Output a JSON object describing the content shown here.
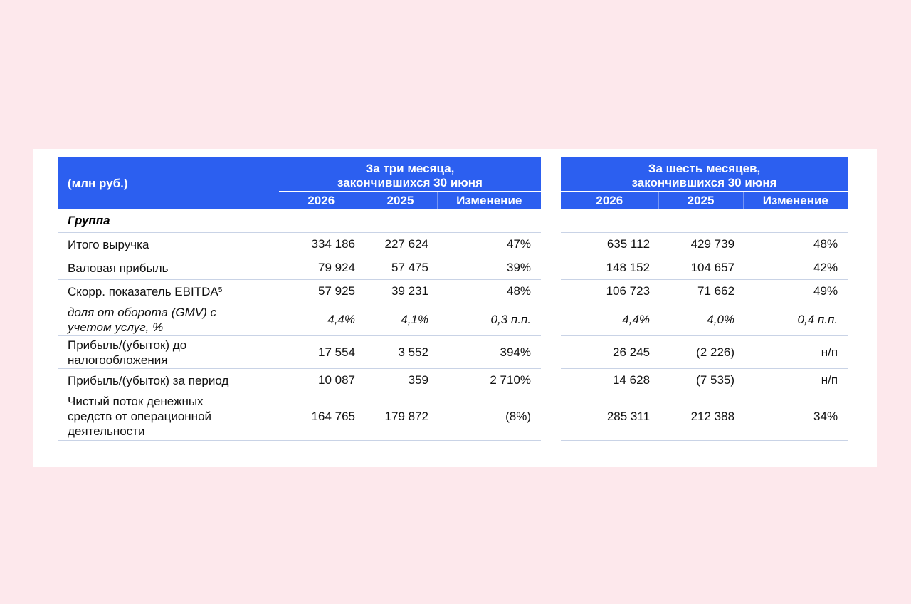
{
  "header": {
    "units": "(млн руб.)",
    "period_three": "За три месяца,\nзакончившихся 30 июня",
    "period_six": "За шесть месяцев,\nзакончившихся 30 июня",
    "col_2026": "2026",
    "col_2025": "2025",
    "col_change": "Изменение"
  },
  "group_label": "Группа",
  "rows": [
    {
      "label": "Итого выручка",
      "sup": "",
      "italic": false,
      "q": [
        "334 186",
        "227 624",
        "47%"
      ],
      "h": [
        "635 112",
        "429 739",
        "48%"
      ]
    },
    {
      "label": "Валовая прибыль",
      "sup": "",
      "italic": false,
      "q": [
        "79 924",
        "57 475",
        "39%"
      ],
      "h": [
        "148 152",
        "104 657",
        "42%"
      ]
    },
    {
      "label": "Скорр. показатель EBITDA",
      "sup": "5",
      "italic": false,
      "q": [
        "57 925",
        "39 231",
        "48%"
      ],
      "h": [
        "106 723",
        "71 662",
        "49%"
      ]
    },
    {
      "label": "доля от оборота (GMV) с учетом услуг, %",
      "sup": "",
      "italic": true,
      "q": [
        "4,4%",
        "4,1%",
        "0,3 п.п."
      ],
      "h": [
        "4,4%",
        "4,0%",
        "0,4 п.п."
      ]
    },
    {
      "label": "Прибыль/(убыток) до налогообложения",
      "sup": "",
      "italic": false,
      "q": [
        "17 554",
        "3 552",
        "394%"
      ],
      "h": [
        "26 245",
        "(2 226)",
        "н/п"
      ]
    },
    {
      "label": "Прибыль/(убыток) за период",
      "sup": "",
      "italic": false,
      "q": [
        "10 087",
        "359",
        "2 710%"
      ],
      "h": [
        "14 628",
        "(7 535)",
        "н/п"
      ]
    },
    {
      "label": "Чистый поток денежных средств от операционной деятельности",
      "sup": "",
      "italic": false,
      "q": [
        "164 765",
        "179 872",
        "(8%)"
      ],
      "h": [
        "285 311",
        "212 388",
        "34%"
      ]
    }
  ]
}
